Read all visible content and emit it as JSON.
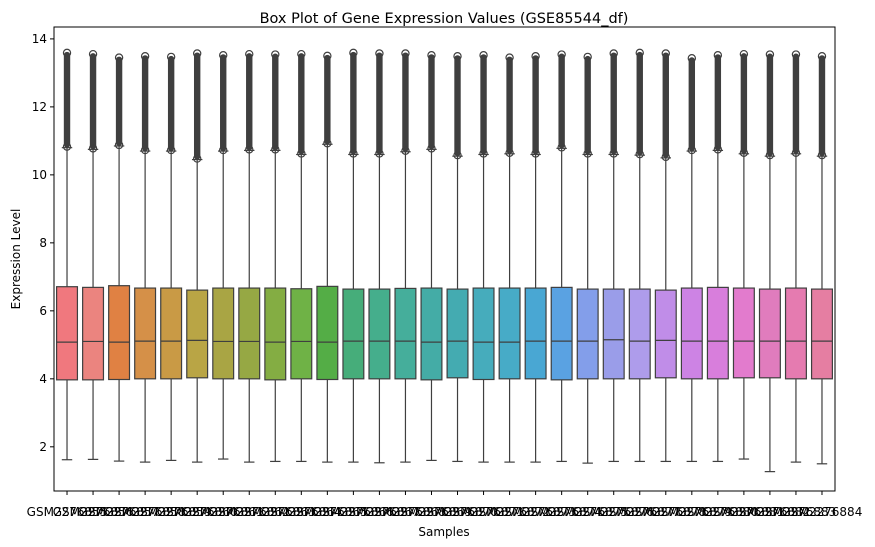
{
  "chart_data": {
    "type": "box",
    "title": "Box Plot of Gene Expression Values (GSE85544_df)",
    "xlabel": "Samples",
    "ylabel": "Expression Level",
    "ylim": [
      0.7,
      14.35
    ],
    "yticks": [
      2,
      4,
      6,
      8,
      10,
      12,
      14
    ],
    "grid": false,
    "categories": [
      "GSM2276855",
      "GSM2276856",
      "GSM2276857",
      "GSM2276858",
      "GSM2276859",
      "GSM2276860",
      "GSM2276861",
      "GSM2276862",
      "GSM2276863",
      "GSM2276864",
      "GSM2276865",
      "GSM2276866",
      "GSM2276867",
      "GSM2276868",
      "GSM2276869",
      "GSM2276870",
      "GSM2276871",
      "GSM2276872",
      "GSM2276873",
      "GSM2276874",
      "GSM2276875",
      "GSM2276876",
      "GSM2276877",
      "GSM2276878",
      "GSM2276879",
      "GSM2276880",
      "GSM2276881",
      "GSM2276882",
      "GSM2276883",
      "GSM2276884"
    ],
    "colors": [
      "#f0787e",
      "#eb847f",
      "#e08143",
      "#d59048",
      "#c99a45",
      "#b9a545",
      "#a9a544",
      "#96a844",
      "#84ad43",
      "#6fb246",
      "#54ad46",
      "#46ad7a",
      "#45ae8c",
      "#45ae9b",
      "#44aca6",
      "#44abb1",
      "#46acbc",
      "#47abc7",
      "#49a7d3",
      "#5aa2e2",
      "#839eea",
      "#9a9de9",
      "#ae9ceb",
      "#c08de8",
      "#cd83e4",
      "#d87edc",
      "#e27bcd",
      "#e07cbd",
      "#e57bb0",
      "#e57ea2"
    ],
    "stats": [
      {
        "whislo": 1.62,
        "q1": 3.97,
        "med": 5.08,
        "q3": 6.71,
        "whishi": 10.8,
        "fliermax": 13.62
      },
      {
        "whislo": 1.63,
        "q1": 3.97,
        "med": 5.1,
        "q3": 6.69,
        "whishi": 10.75,
        "fliermax": 13.58
      },
      {
        "whislo": 1.58,
        "q1": 3.98,
        "med": 5.08,
        "q3": 6.74,
        "whishi": 10.85,
        "fliermax": 13.48
      },
      {
        "whislo": 1.55,
        "q1": 4.0,
        "med": 5.11,
        "q3": 6.67,
        "whishi": 10.7,
        "fliermax": 13.52
      },
      {
        "whislo": 1.6,
        "q1": 4.0,
        "med": 5.11,
        "q3": 6.67,
        "whishi": 10.7,
        "fliermax": 13.5
      },
      {
        "whislo": 1.55,
        "q1": 4.03,
        "med": 5.13,
        "q3": 6.61,
        "whishi": 10.45,
        "fliermax": 13.6
      },
      {
        "whislo": 1.64,
        "q1": 4.0,
        "med": 5.1,
        "q3": 6.67,
        "whishi": 10.7,
        "fliermax": 13.55
      },
      {
        "whislo": 1.55,
        "q1": 4.0,
        "med": 5.1,
        "q3": 6.67,
        "whishi": 10.72,
        "fliermax": 13.58
      },
      {
        "whislo": 1.57,
        "q1": 3.97,
        "med": 5.08,
        "q3": 6.67,
        "whishi": 10.72,
        "fliermax": 13.57
      },
      {
        "whislo": 1.57,
        "q1": 4.0,
        "med": 5.1,
        "q3": 6.65,
        "whishi": 10.6,
        "fliermax": 13.58
      },
      {
        "whislo": 1.55,
        "q1": 3.98,
        "med": 5.08,
        "q3": 6.72,
        "whishi": 10.9,
        "fliermax": 13.53
      },
      {
        "whislo": 1.55,
        "q1": 4.0,
        "med": 5.11,
        "q3": 6.64,
        "whishi": 10.6,
        "fliermax": 13.62
      },
      {
        "whislo": 1.53,
        "q1": 4.0,
        "med": 5.11,
        "q3": 6.64,
        "whishi": 10.6,
        "fliermax": 13.6
      },
      {
        "whislo": 1.55,
        "q1": 4.0,
        "med": 5.11,
        "q3": 6.66,
        "whishi": 10.68,
        "fliermax": 13.6
      },
      {
        "whislo": 1.6,
        "q1": 3.97,
        "med": 5.08,
        "q3": 6.67,
        "whishi": 10.75,
        "fliermax": 13.55
      },
      {
        "whislo": 1.57,
        "q1": 4.03,
        "med": 5.11,
        "q3": 6.64,
        "whishi": 10.55,
        "fliermax": 13.52
      },
      {
        "whislo": 1.55,
        "q1": 3.98,
        "med": 5.08,
        "q3": 6.67,
        "whishi": 10.6,
        "fliermax": 13.55
      },
      {
        "whislo": 1.55,
        "q1": 4.0,
        "med": 5.08,
        "q3": 6.67,
        "whishi": 10.62,
        "fliermax": 13.48
      },
      {
        "whislo": 1.55,
        "q1": 4.0,
        "med": 5.11,
        "q3": 6.67,
        "whishi": 10.6,
        "fliermax": 13.52
      },
      {
        "whislo": 1.57,
        "q1": 3.97,
        "med": 5.11,
        "q3": 6.69,
        "whishi": 10.78,
        "fliermax": 13.57
      },
      {
        "whislo": 1.52,
        "q1": 4.0,
        "med": 5.11,
        "q3": 6.64,
        "whishi": 10.6,
        "fliermax": 13.5
      },
      {
        "whislo": 1.57,
        "q1": 4.0,
        "med": 5.15,
        "q3": 6.64,
        "whishi": 10.6,
        "fliermax": 13.6
      },
      {
        "whislo": 1.57,
        "q1": 4.0,
        "med": 5.11,
        "q3": 6.64,
        "whishi": 10.58,
        "fliermax": 13.62
      },
      {
        "whislo": 1.57,
        "q1": 4.03,
        "med": 5.13,
        "q3": 6.61,
        "whishi": 10.5,
        "fliermax": 13.6
      },
      {
        "whislo": 1.57,
        "q1": 4.0,
        "med": 5.11,
        "q3": 6.67,
        "whishi": 10.7,
        "fliermax": 13.46
      },
      {
        "whislo": 1.57,
        "q1": 4.0,
        "med": 5.11,
        "q3": 6.69,
        "whishi": 10.72,
        "fliermax": 13.55
      },
      {
        "whislo": 1.64,
        "q1": 4.03,
        "med": 5.11,
        "q3": 6.67,
        "whishi": 10.62,
        "fliermax": 13.58
      },
      {
        "whislo": 1.27,
        "q1": 4.03,
        "med": 5.11,
        "q3": 6.64,
        "whishi": 10.55,
        "fliermax": 13.57
      },
      {
        "whislo": 1.55,
        "q1": 4.0,
        "med": 5.11,
        "q3": 6.67,
        "whishi": 10.62,
        "fliermax": 13.57
      },
      {
        "whislo": 1.5,
        "q1": 4.0,
        "med": 5.11,
        "q3": 6.64,
        "whishi": 10.55,
        "fliermax": 13.52
      }
    ]
  }
}
